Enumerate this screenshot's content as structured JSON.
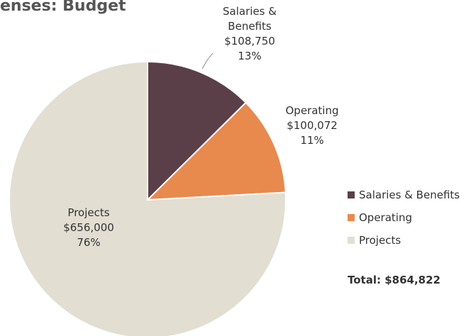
{
  "chart_data": {
    "type": "pie",
    "title": "enses: Budget",
    "categories": [
      "Salaries & Benefits",
      "Operating",
      "Projects"
    ],
    "values": [
      108750,
      100072,
      656000
    ],
    "value_labels": [
      "$108,750",
      "$100,072",
      "$656,000"
    ],
    "percentages": [
      13,
      11,
      76
    ],
    "percentage_labels": [
      "13%",
      "11%",
      "76%"
    ],
    "colors": [
      "#5b3f48",
      "#e8894e",
      "#e2ded2"
    ],
    "legend": "right",
    "total": "Total: $864,822"
  }
}
